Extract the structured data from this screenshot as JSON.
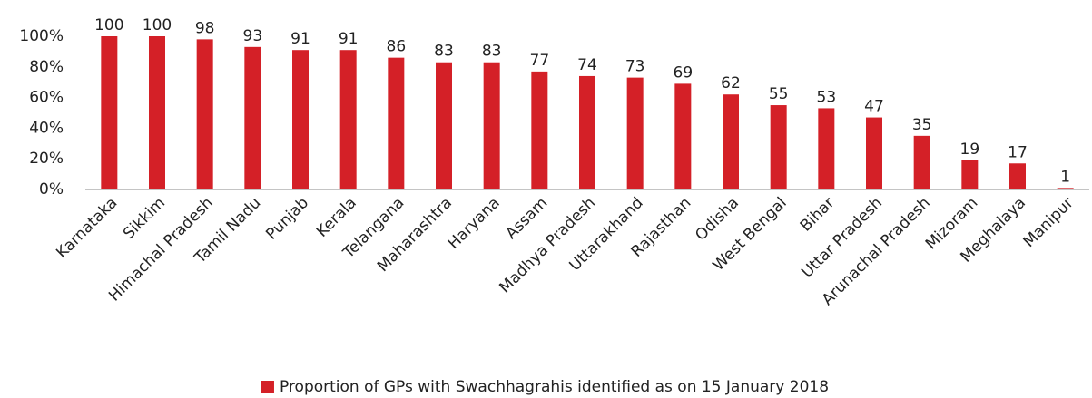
{
  "chart_data": {
    "type": "bar",
    "categories": [
      "Karnataka",
      "Sikkim",
      "Himachal Pradesh",
      "Tamil Nadu",
      "Punjab",
      "Kerala",
      "Telangana",
      "Maharashtra",
      "Haryana",
      "Assam",
      "Madhya Pradesh",
      "Uttarakhand",
      "Rajasthan",
      "Odisha",
      "West Bengal",
      "Bihar",
      "Uttar Pradesh",
      "Arunachal Pradesh",
      "Mizoram",
      "Meghalaya",
      "Manipur"
    ],
    "series": [
      {
        "name": "Proportion of GPs with Swachhagrahis identified as on 15 January 2018",
        "color": "#d42027",
        "values": [
          100,
          100,
          98,
          93,
          91,
          91,
          86,
          83,
          83,
          77,
          74,
          73,
          69,
          62,
          55,
          53,
          47,
          35,
          19,
          17,
          1
        ]
      }
    ],
    "ylim": [
      0,
      100
    ],
    "yticks": [
      {
        "value": 0,
        "label": "0%"
      },
      {
        "value": 20,
        "label": "20%"
      },
      {
        "value": 40,
        "label": "40%"
      },
      {
        "value": 60,
        "label": "60%"
      },
      {
        "value": 80,
        "label": "80%"
      },
      {
        "value": 100,
        "label": "100%"
      }
    ],
    "grid": false,
    "legend": "bottom"
  }
}
